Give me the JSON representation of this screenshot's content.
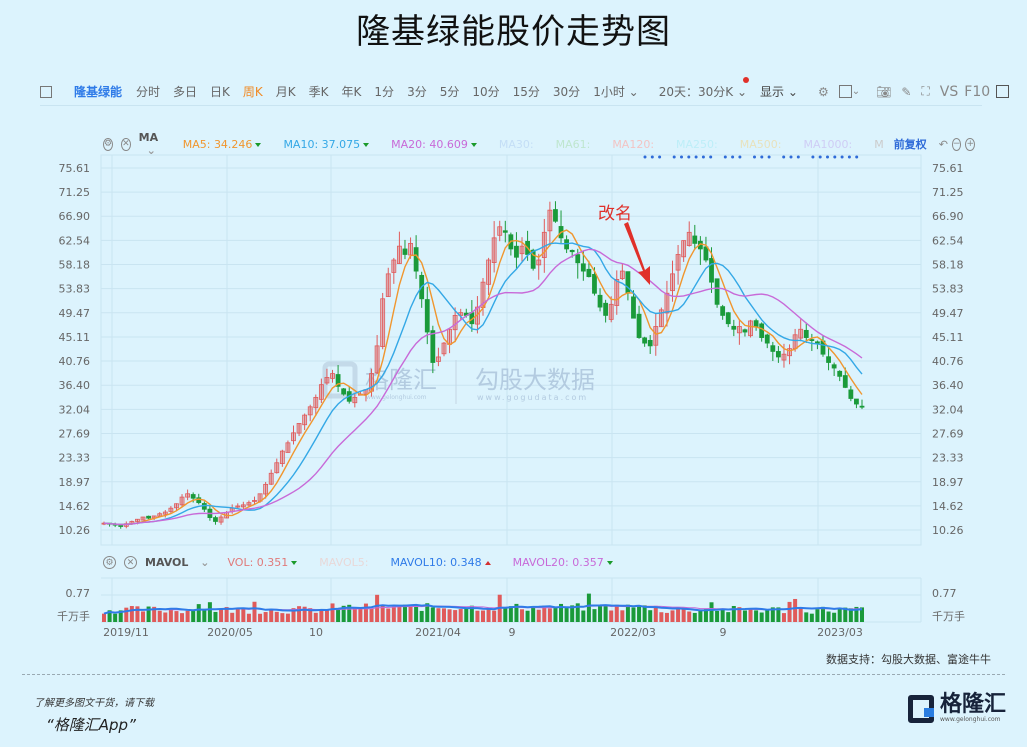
{
  "title": "隆基绿能股价走势图",
  "toolbar": {
    "stock_name": "隆基绿能",
    "periods": [
      "分时",
      "多日",
      "日K",
      "周K",
      "月K",
      "季K",
      "年K",
      "1分",
      "3分",
      "5分",
      "10分",
      "15分",
      "30分",
      "1小时"
    ],
    "active_period": "周K",
    "range_select": "20天：30分K",
    "display_label": "显示",
    "vs_label": "VS",
    "f10_label": "F10"
  },
  "ma_legend": {
    "indicator": "MA",
    "items": [
      {
        "label": "MA5:",
        "value": "34.246",
        "color": "#f0962e",
        "trend": "down"
      },
      {
        "label": "MA10:",
        "value": "37.075",
        "color": "#34a8e6",
        "trend": "down"
      },
      {
        "label": "MA20:",
        "value": "40.609",
        "color": "#c86ad8",
        "trend": "down"
      },
      {
        "label": "MA30:",
        "value": "",
        "color": "#c4def6"
      },
      {
        "label": "MA61:",
        "value": "",
        "color": "#bfe6cf"
      },
      {
        "label": "MA120:",
        "value": "",
        "color": "#f2c4c4"
      },
      {
        "label": "MA250:",
        "value": "",
        "color": "#bdeef8"
      },
      {
        "label": "MA500:",
        "value": "",
        "color": "#e8e2bd"
      },
      {
        "label": "MA1000:",
        "value": "",
        "color": "#cfcdf5"
      },
      {
        "label": "M",
        "value": "",
        "color": "#cccccc"
      }
    ],
    "adjust_label": "前复权"
  },
  "vol_legend": {
    "indicator": "MAVOL",
    "items": [
      {
        "label": "VOL:",
        "value": "0.351",
        "color": "#e07a7a",
        "trend": "down"
      },
      {
        "label": "MAVOL5:",
        "value": "",
        "color": "#e8d8d8"
      },
      {
        "label": "MAVOL10:",
        "value": "0.348",
        "color": "#2f7be8",
        "trend": "up"
      },
      {
        "label": "MAVOL20:",
        "value": "0.357",
        "color": "#c86ad8",
        "trend": "down"
      }
    ],
    "vol_axis": [
      "0.77",
      "千万手"
    ]
  },
  "annotation": "改名",
  "watermark": {
    "left_text": "格隆汇",
    "left_url": "www.gelonghui.com",
    "right_text": "勾股大数据",
    "right_url": "www.gogudata.com"
  },
  "source": "数据支持：勾股大数据、富途牛牛",
  "promo": {
    "line1": "了解更多图文干货，请下载",
    "line2": "“格隆汇App”"
  },
  "logo": {
    "name": "格隆汇",
    "url": "www.gelonghui.com"
  },
  "colors": {
    "up": "#e05a5a",
    "down": "#1a9a3a",
    "grid": "#c9e4f1",
    "bg": "#dcf3fd"
  },
  "chart_data": {
    "type": "candlestick",
    "title": "隆基绿能股价走势图",
    "frequency": "weekly",
    "y_ticks": [
      "75.61",
      "71.25",
      "66.90",
      "62.54",
      "58.18",
      "53.83",
      "49.47",
      "45.11",
      "40.76",
      "36.40",
      "32.04",
      "27.69",
      "23.33",
      "18.97",
      "14.62",
      "10.26"
    ],
    "ylim": [
      10.26,
      75.61
    ],
    "x_ticks": [
      "2019/11",
      "2020/05",
      "10",
      "2021/04",
      "9",
      "2022/03",
      "9",
      "2023/03"
    ],
    "close_series": [
      11.5,
      11.3,
      11.2,
      11.0,
      11.4,
      11.8,
      12.2,
      12.6,
      12.4,
      12.8,
      13.2,
      13.5,
      14.2,
      15.0,
      16.2,
      16.8,
      16.0,
      15.2,
      14.0,
      12.5,
      11.8,
      12.6,
      13.4,
      14.2,
      14.6,
      14.8,
      15.2,
      15.6,
      16.8,
      18.5,
      20.5,
      22.4,
      24.5,
      26.0,
      27.8,
      29.5,
      31.0,
      32.5,
      34.2,
      36.5,
      37.8,
      38.5,
      36.2,
      34.8,
      33.5,
      34.2,
      34.8,
      35.6,
      38.5,
      43.5,
      52.0,
      56.5,
      59.0,
      61.5,
      60.0,
      62.0,
      57.0,
      52.0,
      46.0,
      40.5,
      41.5,
      44.0,
      46.5,
      49.0,
      49.5,
      49.0,
      47.5,
      50.5,
      55.0,
      59.0,
      63.0,
      65.0,
      64.0,
      61.0,
      59.5,
      61.5,
      60.0,
      57.5,
      59.0,
      64.0,
      68.0,
      66.0,
      63.0,
      61.0,
      60.5,
      58.5,
      57.0,
      56.0,
      53.0,
      50.5,
      49.0,
      51.0,
      55.5,
      57.0,
      53.0,
      48.5,
      45.0,
      44.0,
      43.5,
      47.0,
      50.0,
      53.0,
      56.5,
      60.0,
      62.5,
      64.0,
      62.0,
      61.0,
      59.0,
      55.0,
      51.0,
      49.0,
      47.5,
      46.5,
      47.0,
      46.0,
      48.0,
      47.0,
      45.0,
      44.0,
      42.5,
      41.5,
      42.0,
      43.0,
      45.5,
      46.5,
      45.0,
      44.5,
      44.0,
      42.0,
      40.5,
      39.5,
      38.0,
      36.0,
      34.0,
      33.0,
      32.6
    ],
    "ma5_last": 34.246,
    "ma10_last": 37.075,
    "ma20_last": 40.609,
    "volume": {
      "unit": "千万手",
      "axis_max": 0.77,
      "last": 0.351,
      "mavol10": 0.348,
      "mavol20": 0.357
    },
    "annotations": [
      {
        "text": "改名",
        "index": 95,
        "color": "#e0302a"
      }
    ]
  }
}
